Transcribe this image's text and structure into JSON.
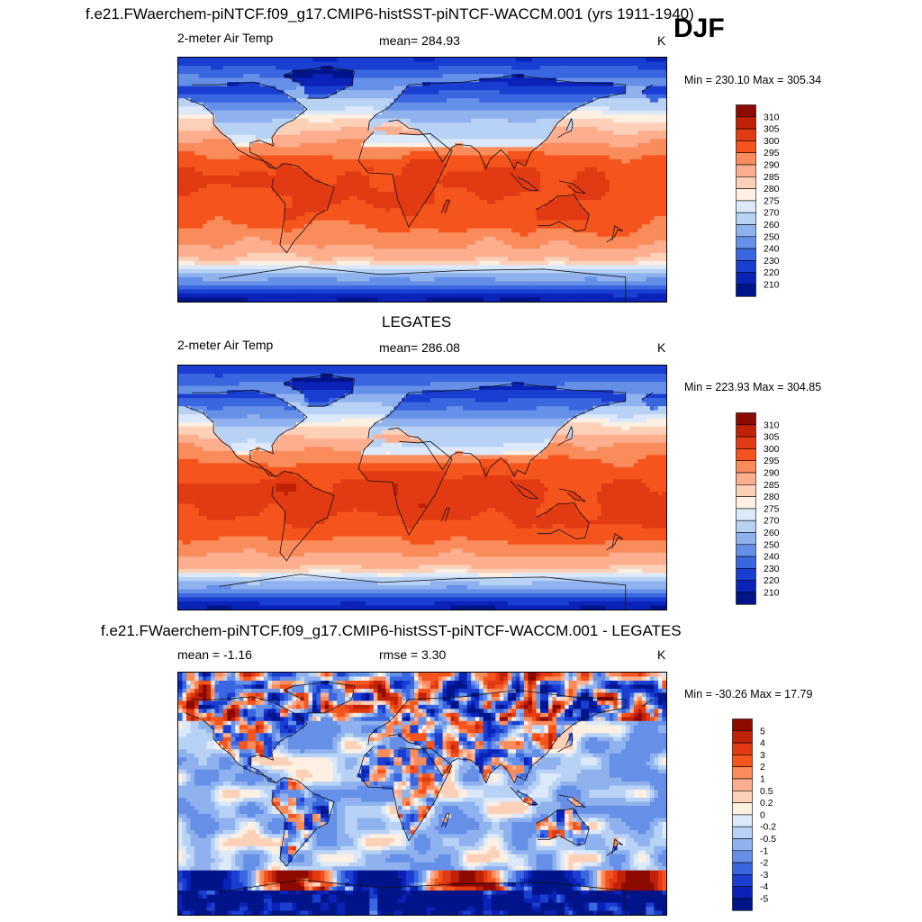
{
  "season_label": "DJF",
  "panels": [
    {
      "title": "f.e21.FWaerchem-piNTCF.f09_g17.CMIP6-histSST-piNTCF-WACCM.001 (yrs 1911-1940)",
      "left_label": "2-meter Air Temp",
      "center_label": "mean= 284.93",
      "units": "K",
      "minmax": "Min = 230.10 Max = 305.34",
      "colorbar": {
        "labels": [
          "310",
          "305",
          "300",
          "295",
          "290",
          "285",
          "280",
          "275",
          "270",
          "260",
          "250",
          "240",
          "230",
          "220",
          "210"
        ],
        "colors": [
          "#8c0a00",
          "#c02208",
          "#e23a12",
          "#f5541c",
          "#fa8c5c",
          "#fcae8e",
          "#fdd0b8",
          "#fef0e2",
          "#dce9fb",
          "#b8d2f5",
          "#8fb2ee",
          "#6690e8",
          "#3a66e0",
          "#1a3ed2",
          "#0a22b8",
          "#00148a"
        ]
      },
      "field": "model_temp"
    },
    {
      "title": "LEGATES",
      "left_label": "2-meter Air Temp",
      "center_label": "mean= 286.08",
      "units": "K",
      "minmax": "Min = 223.93 Max = 304.85",
      "colorbar": {
        "labels": [
          "310",
          "305",
          "300",
          "295",
          "290",
          "285",
          "280",
          "275",
          "270",
          "260",
          "250",
          "240",
          "230",
          "220",
          "210"
        ],
        "colors": [
          "#8c0a00",
          "#c02208",
          "#e23a12",
          "#f5541c",
          "#fa8c5c",
          "#fcae8e",
          "#fdd0b8",
          "#fef0e2",
          "#dce9fb",
          "#b8d2f5",
          "#8fb2ee",
          "#6690e8",
          "#3a66e0",
          "#1a3ed2",
          "#0a22b8",
          "#00148a"
        ]
      },
      "field": "obs_temp"
    },
    {
      "title": "f.e21.FWaerchem-piNTCF.f09_g17.CMIP6-histSST-piNTCF-WACCM.001 - LEGATES",
      "left_label": "mean =  -1.16",
      "center_label": "rmse =   3.30",
      "units": "K",
      "minmax": "Min = -30.26 Max =  17.79",
      "colorbar": {
        "labels": [
          "5",
          "4",
          "3",
          "2",
          "1",
          "0.5",
          "0.2",
          "0",
          "-0.2",
          "-0.5",
          "-1",
          "-2",
          "-3",
          "-4",
          "-5"
        ],
        "colors": [
          "#8c0a00",
          "#c02208",
          "#e23a12",
          "#f5541c",
          "#fa8c5c",
          "#fcae8e",
          "#fdd0b8",
          "#fef0e2",
          "#dce9fb",
          "#b8d2f5",
          "#8fb2ee",
          "#6690e8",
          "#3a66e0",
          "#1a3ed2",
          "#0a22b8",
          "#00148a"
        ]
      },
      "field": "difference"
    }
  ]
}
